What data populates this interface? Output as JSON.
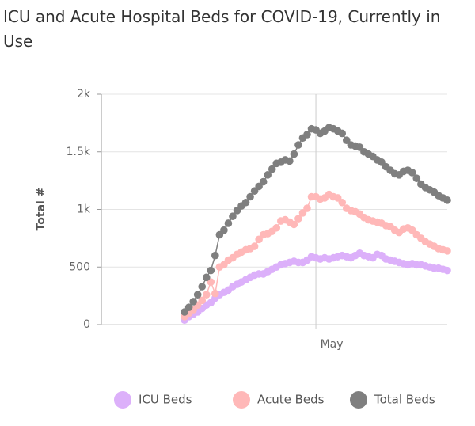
{
  "chart_data": {
    "type": "line",
    "title": "ICU and Acute Hospital Beds for COVID-19, Currently in Use",
    "y_label": "Total #",
    "categories": [
      null,
      null,
      null,
      null,
      null,
      null,
      null,
      null,
      null,
      null,
      null,
      null,
      null,
      null,
      null,
      null,
      null,
      null,
      null,
      null,
      null,
      null,
      null,
      null,
      null,
      null,
      null,
      null,
      null,
      null,
      null,
      null,
      null,
      null,
      null,
      null,
      null,
      null,
      null,
      null,
      null,
      null,
      null,
      null,
      null,
      null,
      null,
      null,
      null,
      "May",
      null,
      null,
      null,
      null,
      null,
      null,
      null,
      null,
      null,
      null,
      null,
      null,
      null,
      null,
      null,
      null,
      null,
      null,
      null,
      null,
      null,
      null,
      null,
      null,
      null,
      null,
      null,
      null,
      null,
      null
    ],
    "series": [
      {
        "name": "ICU Beds",
        "color": "#dcb0fa",
        "values": [
          null,
          null,
          null,
          null,
          null,
          null,
          null,
          null,
          null,
          null,
          null,
          null,
          null,
          null,
          null,
          null,
          null,
          null,
          null,
          40,
          70,
          90,
          110,
          140,
          170,
          190,
          230,
          260,
          280,
          300,
          330,
          350,
          370,
          390,
          410,
          430,
          440,
          440,
          460,
          480,
          500,
          520,
          530,
          540,
          550,
          540,
          540,
          560,
          590,
          580,
          570,
          580,
          570,
          580,
          590,
          600,
          590,
          580,
          600,
          620,
          600,
          590,
          580,
          610,
          600,
          570,
          560,
          550,
          540,
          530,
          520,
          530,
          520,
          520,
          510,
          500,
          490,
          490,
          480,
          470
        ]
      },
      {
        "name": "Acute Beds",
        "color": "#ffb8b8",
        "values": [
          null,
          null,
          null,
          null,
          null,
          null,
          null,
          null,
          null,
          null,
          null,
          null,
          null,
          null,
          null,
          null,
          null,
          null,
          null,
          70,
          100,
          130,
          170,
          210,
          260,
          370,
          270,
          500,
          520,
          560,
          580,
          610,
          630,
          650,
          660,
          680,
          740,
          780,
          790,
          810,
          840,
          900,
          910,
          890,
          870,
          920,
          970,
          1010,
          1110,
          1110,
          1090,
          1100,
          1130,
          1110,
          1100,
          1060,
          1010,
          990,
          980,
          960,
          930,
          910,
          900,
          890,
          880,
          860,
          850,
          820,
          800,
          830,
          840,
          820,
          780,
          750,
          720,
          700,
          680,
          660,
          650,
          640
        ]
      },
      {
        "name": "Total Beds",
        "color": "#7f7f7f",
        "values": [
          null,
          null,
          null,
          null,
          null,
          null,
          null,
          null,
          null,
          null,
          null,
          null,
          null,
          null,
          null,
          null,
          null,
          null,
          null,
          110,
          150,
          200,
          260,
          330,
          410,
          470,
          600,
          780,
          820,
          880,
          940,
          990,
          1030,
          1060,
          1110,
          1160,
          1200,
          1240,
          1300,
          1350,
          1400,
          1410,
          1430,
          1420,
          1480,
          1560,
          1620,
          1650,
          1700,
          1690,
          1660,
          1680,
          1710,
          1700,
          1680,
          1660,
          1600,
          1560,
          1550,
          1540,
          1500,
          1480,
          1460,
          1430,
          1410,
          1370,
          1340,
          1310,
          1300,
          1330,
          1340,
          1320,
          1270,
          1220,
          1190,
          1170,
          1150,
          1120,
          1100,
          1080
        ]
      }
    ],
    "ylim": [
      0,
      2000
    ],
    "yticks": [
      0,
      500,
      {
        "value": 1000,
        "label": "1k"
      },
      {
        "value": 1500,
        "label": "1.5k"
      },
      {
        "value": 2000,
        "label": "2k"
      }
    ],
    "grid": true,
    "legend": "bottom"
  }
}
